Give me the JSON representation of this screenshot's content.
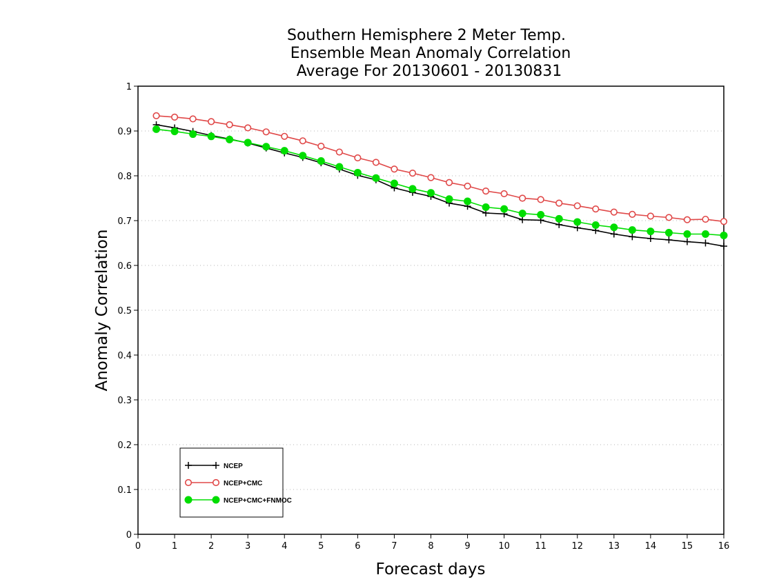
{
  "chart_data": {
    "type": "line",
    "title": [
      "Southern Hemisphere 2 Meter Temp.",
      "Ensemble Mean Anomaly Correlation",
      "Average For 20130601 - 20130831"
    ],
    "xlabel": "Forecast days",
    "ylabel": "Anomaly Correlation",
    "xlim": [
      0,
      16
    ],
    "ylim": [
      0,
      1
    ],
    "xticks": [
      0,
      1,
      2,
      3,
      4,
      5,
      6,
      7,
      8,
      9,
      10,
      11,
      12,
      13,
      14,
      15,
      16
    ],
    "yticks": [
      0,
      0.1,
      0.2,
      0.3,
      0.4,
      0.5,
      0.6,
      0.7,
      0.8,
      0.9,
      1
    ],
    "ytick_labels": [
      "0",
      "0.1",
      "0.2",
      "0.3",
      "0.4",
      "0.5",
      "0.6",
      "0.7",
      "0.8",
      "0.9",
      "1"
    ],
    "grid": "dotted horizontal",
    "legend_position": "bottom-left",
    "x": [
      0.5,
      1,
      1.5,
      2,
      2.5,
      3,
      3.5,
      4,
      4.5,
      5,
      5.5,
      6,
      6.5,
      7,
      7.5,
      8,
      8.5,
      9,
      9.5,
      10,
      10.5,
      11,
      11.5,
      12,
      12.5,
      13,
      13.5,
      14,
      14.5,
      15,
      15.5,
      16
    ],
    "series": [
      {
        "name": "NCEP",
        "color": "#000000",
        "marker": "plus",
        "values": [
          0.914,
          0.907,
          0.899,
          0.89,
          0.882,
          0.873,
          0.862,
          0.851,
          0.841,
          0.829,
          0.815,
          0.801,
          0.791,
          0.773,
          0.763,
          0.754,
          0.739,
          0.732,
          0.717,
          0.715,
          0.702,
          0.701,
          0.691,
          0.684,
          0.678,
          0.67,
          0.664,
          0.66,
          0.657,
          0.653,
          0.65,
          0.643
        ]
      },
      {
        "name": "NCEP+CMC",
        "color": "#e04848",
        "marker": "circle-open",
        "values": [
          0.934,
          0.931,
          0.927,
          0.921,
          0.914,
          0.907,
          0.898,
          0.888,
          0.878,
          0.866,
          0.853,
          0.84,
          0.83,
          0.815,
          0.806,
          0.796,
          0.785,
          0.777,
          0.766,
          0.76,
          0.75,
          0.747,
          0.739,
          0.733,
          0.726,
          0.719,
          0.714,
          0.71,
          0.707,
          0.702,
          0.703,
          0.698
        ]
      },
      {
        "name": "NCEP+CMC+FNMOC",
        "color": "#00dd00",
        "marker": "circle-filled",
        "values": [
          0.904,
          0.899,
          0.893,
          0.888,
          0.881,
          0.874,
          0.865,
          0.856,
          0.845,
          0.833,
          0.82,
          0.807,
          0.795,
          0.783,
          0.771,
          0.762,
          0.748,
          0.743,
          0.73,
          0.726,
          0.716,
          0.713,
          0.704,
          0.697,
          0.69,
          0.685,
          0.679,
          0.676,
          0.673,
          0.67,
          0.67,
          0.667
        ]
      }
    ]
  }
}
